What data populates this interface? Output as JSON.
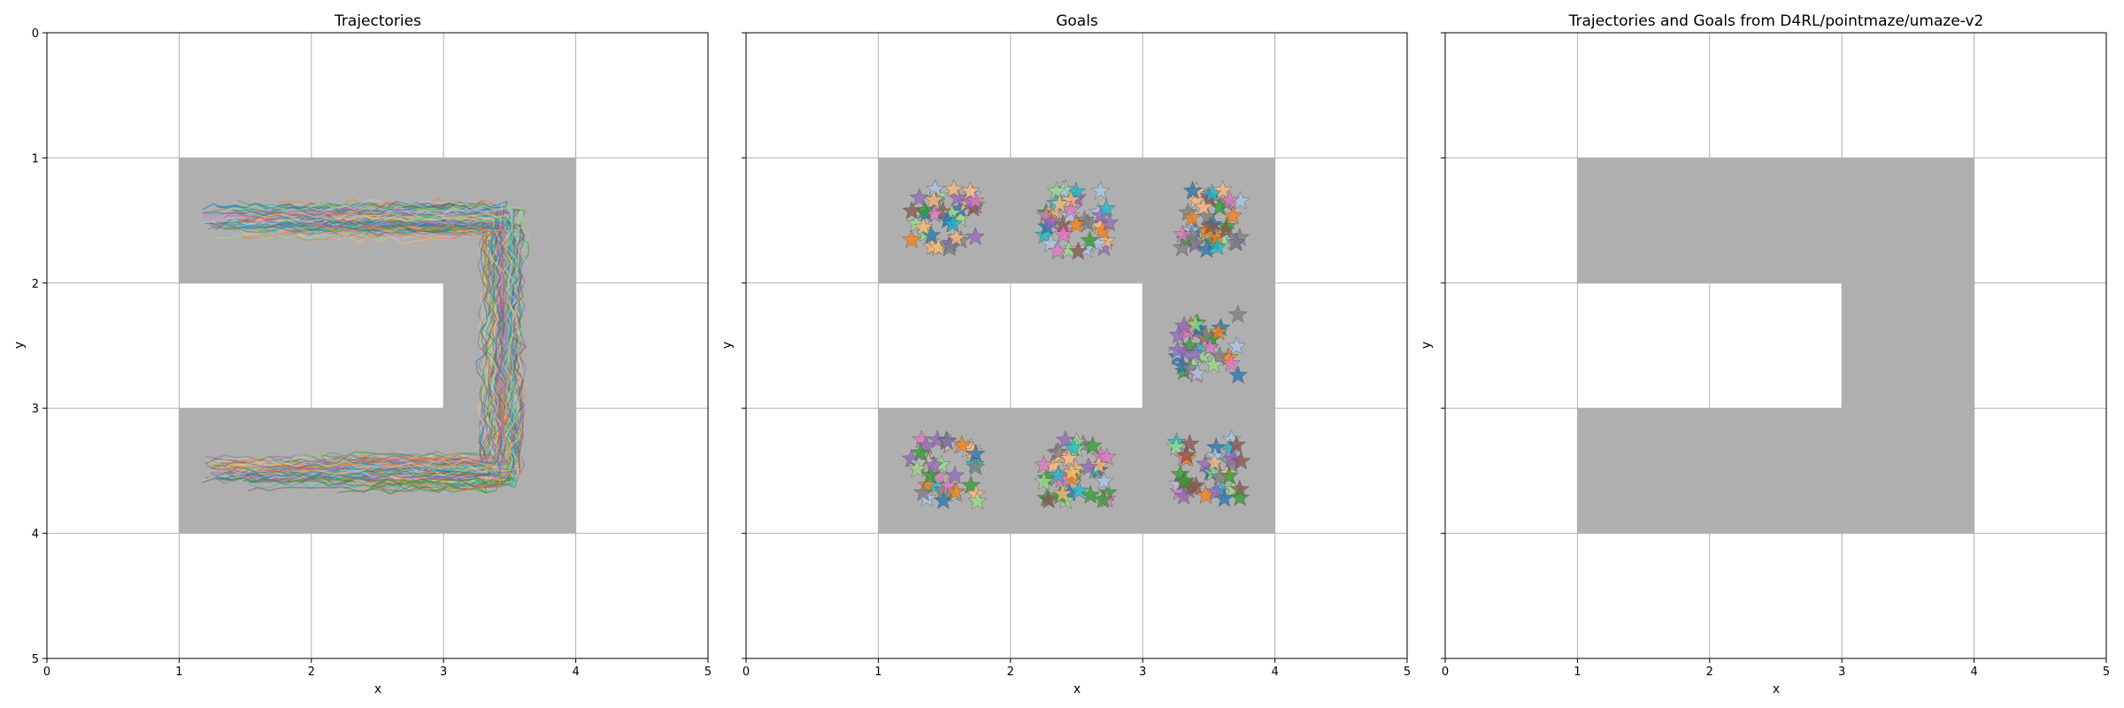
{
  "colors": {
    "wall_cell": "#afafaf",
    "grid": "#b0b0b0",
    "axis": "#000000",
    "palette": [
      "#1f77b4",
      "#ff7f0e",
      "#2ca02c",
      "#9467bd",
      "#8c564b",
      "#e377c2",
      "#7f7f7f",
      "#17becf",
      "#aec7e8",
      "#98df8a",
      "#ffbb78"
    ]
  },
  "chart_data": [
    {
      "type": "trajectory-plot",
      "title": "Trajectories",
      "xlabel": "x",
      "ylabel": "y",
      "xlim": [
        0,
        5
      ],
      "ylim": [
        5,
        0
      ],
      "y_inverted": true,
      "xticks": [
        "0",
        "1",
        "2",
        "3",
        "4",
        "5"
      ],
      "yticks": [
        "0",
        "1",
        "2",
        "3",
        "4",
        "5"
      ],
      "grid": true,
      "maze_cells": [
        [
          1,
          1
        ],
        [
          2,
          1
        ],
        [
          3,
          1
        ],
        [
          3,
          2
        ],
        [
          1,
          3
        ],
        [
          2,
          3
        ],
        [
          3,
          3
        ]
      ],
      "trajectory_count_estimate": 200,
      "trajectory_style": "semi-transparent multicolored lines filling U-shaped corridor",
      "trajectory_x_range": [
        1.1,
        3.85
      ],
      "trajectory_y_range": [
        1.15,
        3.85
      ]
    },
    {
      "type": "scatter",
      "title": "Goals",
      "xlabel": "x",
      "ylabel": "y",
      "xlim": [
        0,
        5
      ],
      "ylim": [
        5,
        0
      ],
      "y_inverted": true,
      "xticks": [
        "0",
        "1",
        "2",
        "3",
        "4",
        "5"
      ],
      "yticks": [],
      "grid": true,
      "marker": "star",
      "maze_cells": [
        [
          1,
          1
        ],
        [
          2,
          1
        ],
        [
          3,
          1
        ],
        [
          3,
          2
        ],
        [
          1,
          3
        ],
        [
          2,
          3
        ],
        [
          3,
          3
        ]
      ],
      "goal_clusters": [
        {
          "center": [
            1.5,
            1.5
          ],
          "halfwidth": 0.25
        },
        {
          "center": [
            2.5,
            1.5
          ],
          "halfwidth": 0.25
        },
        {
          "center": [
            3.5,
            1.5
          ],
          "halfwidth": 0.25
        },
        {
          "center": [
            3.5,
            2.5
          ],
          "halfwidth": 0.25
        },
        {
          "center": [
            1.5,
            3.5
          ],
          "halfwidth": 0.25
        },
        {
          "center": [
            2.5,
            3.5
          ],
          "halfwidth": 0.25
        },
        {
          "center": [
            3.5,
            3.5
          ],
          "halfwidth": 0.25
        }
      ],
      "points_per_cluster_estimate": 40
    },
    {
      "type": "maze-map",
      "title": "Trajectories and Goals from D4RL/pointmaze/umaze-v2",
      "xlabel": "x",
      "ylabel": "y",
      "xlim": [
        0,
        5
      ],
      "ylim": [
        5,
        0
      ],
      "y_inverted": true,
      "xticks": [
        "0",
        "1",
        "2",
        "3",
        "4",
        "5"
      ],
      "yticks": [],
      "grid": true,
      "maze_cells": [
        [
          1,
          1
        ],
        [
          2,
          1
        ],
        [
          3,
          1
        ],
        [
          3,
          2
        ],
        [
          1,
          3
        ],
        [
          2,
          3
        ],
        [
          3,
          3
        ]
      ]
    }
  ]
}
